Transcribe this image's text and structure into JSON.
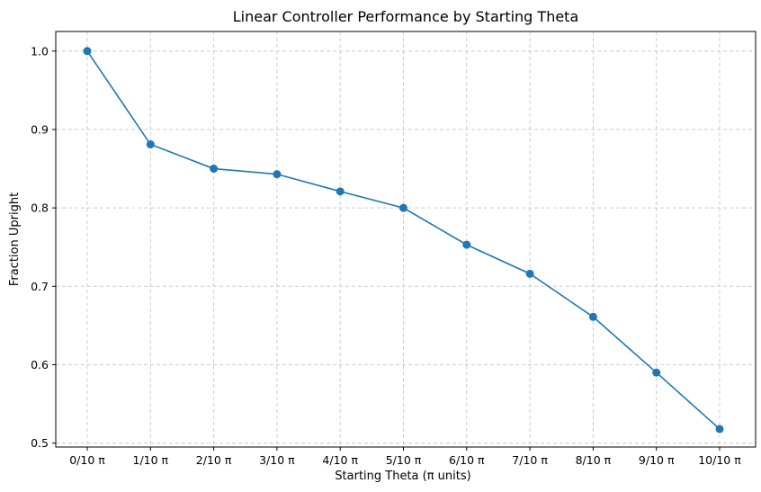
{
  "chart_data": {
    "type": "line",
    "title": "Linear Controller Performance by Starting Theta",
    "xlabel": "Starting Theta (π units)",
    "ylabel": "Fraction Upright",
    "categories": [
      "0/10 π",
      "1/10 π",
      "2/10 π",
      "3/10 π",
      "4/10 π",
      "5/10 π",
      "6/10 π",
      "7/10 π",
      "8/10 π",
      "9/10 π",
      "10/10 π"
    ],
    "series": [
      {
        "values": [
          1.0,
          0.881,
          0.85,
          0.843,
          0.821,
          0.8,
          0.753,
          0.716,
          0.661,
          0.59,
          0.518
        ],
        "color": "#1f77b4",
        "marker": "circle"
      }
    ],
    "yticks": [
      "0.5",
      "0.6",
      "0.7",
      "0.8",
      "0.9",
      "1.0"
    ],
    "ylim": [
      0.495,
      1.025
    ],
    "grid": true,
    "legend": "none"
  }
}
